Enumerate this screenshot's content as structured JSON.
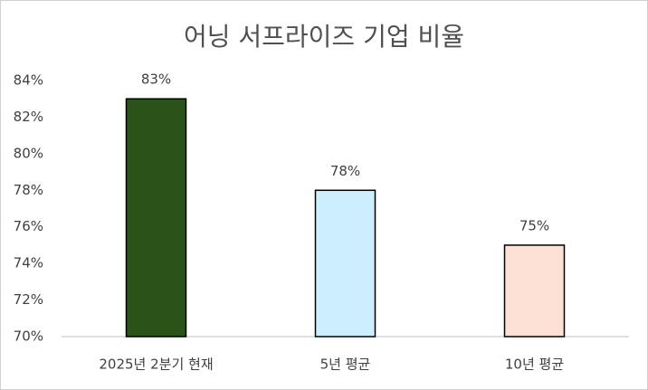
{
  "chart_data": {
    "type": "bar",
    "title": "어닝 서프라이즈 기업 비율",
    "categories": [
      "2025년 2분기 현재",
      "5년 평균",
      "10년 평균"
    ],
    "values": [
      83,
      78,
      75
    ],
    "value_labels": [
      "83%",
      "78%",
      "75%"
    ],
    "colors": [
      "#2a5219",
      "#cdeefe",
      "#fce0d6"
    ],
    "ylim": [
      70,
      84
    ],
    "yticks": [
      {
        "value": 70,
        "label": "70%"
      },
      {
        "value": 72,
        "label": "72%"
      },
      {
        "value": 74,
        "label": "74%"
      },
      {
        "value": 76,
        "label": "76%"
      },
      {
        "value": 78,
        "label": "78%"
      },
      {
        "value": 80,
        "label": "80%"
      },
      {
        "value": 82,
        "label": "82%"
      },
      {
        "value": 84,
        "label": "84%"
      }
    ],
    "grid": false
  }
}
